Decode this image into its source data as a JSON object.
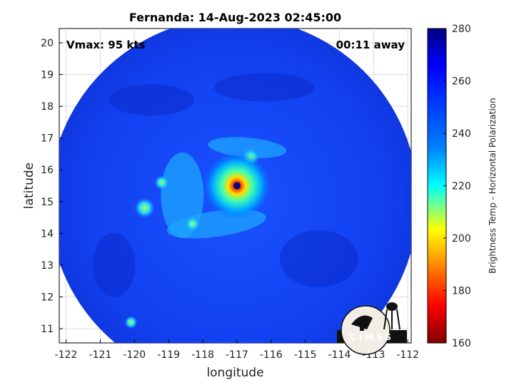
{
  "chart_data": {
    "type": "heatmap",
    "title": "Fernanda: 14-Aug-2023 02:45:00",
    "xlabel": "longitude",
    "ylabel": "latitude",
    "xlim": [
      -122.2,
      -111.9
    ],
    "ylim": [
      10.55,
      20.45
    ],
    "xticks": [
      "-122",
      "-121",
      "-120",
      "-119",
      "-118",
      "-117",
      "-116",
      "-115",
      "-114",
      "-113",
      "-112"
    ],
    "yticks": [
      "11",
      "12",
      "13",
      "14",
      "15",
      "16",
      "17",
      "18",
      "19",
      "20"
    ],
    "grid": true,
    "annotations": {
      "vmax": "Vmax: 95 kts",
      "time_offset": "00:11 away"
    },
    "colorbar": {
      "label": "Brightness Temp - Horizontal Polarization",
      "range": [
        160,
        280
      ],
      "ticks": [
        "160",
        "180",
        "200",
        "220",
        "240",
        "260",
        "280"
      ],
      "colormap": "jet",
      "colors": [
        "#7f0000",
        "#ff0000",
        "#ffff00",
        "#00ffff",
        "#0080ff",
        "#0000ff",
        "#00007f"
      ]
    },
    "storm_center": {
      "lon": -117.0,
      "lat": 15.5
    },
    "swath_center": {
      "lon": -117.1,
      "lat": 15.0
    },
    "swath_radius_deg": 5.4,
    "background_value": 262
  },
  "logo": {
    "text": "CIMSS"
  }
}
